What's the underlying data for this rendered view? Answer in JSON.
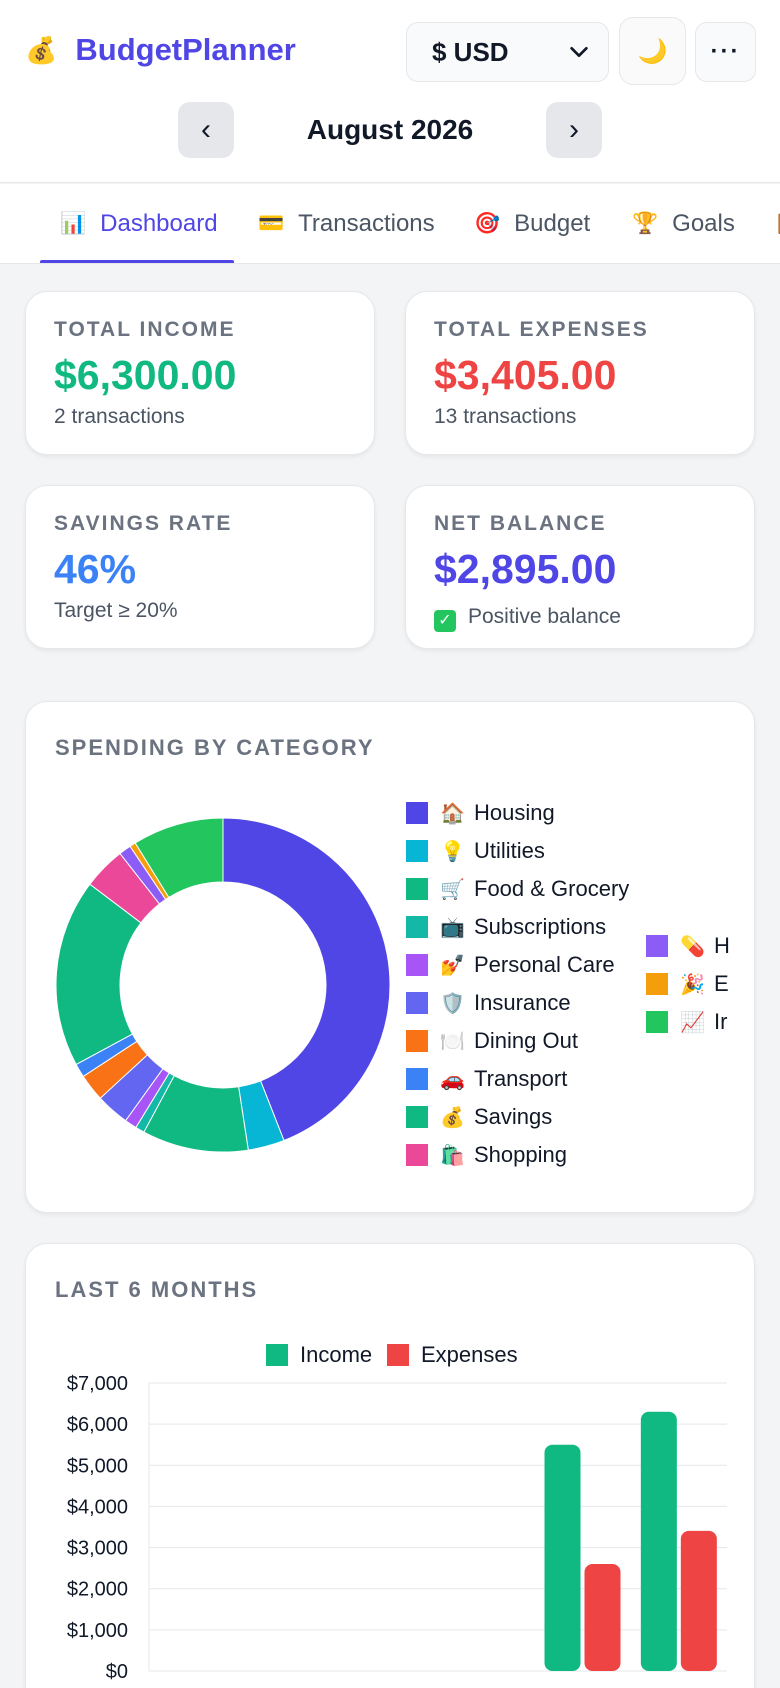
{
  "app": {
    "icon": "money-bag-icon",
    "title": "BudgetPlanner"
  },
  "currency": {
    "selected": "$ USD"
  },
  "header_buttons": {
    "theme_icon": "🌙",
    "more_icon": "···"
  },
  "month_nav": {
    "prev": "‹",
    "next": "›",
    "label": "August 2026"
  },
  "tabs": [
    {
      "icon": "📊",
      "label": "Dashboard",
      "active": true
    },
    {
      "icon": "💳",
      "label": "Transactions",
      "active": false
    },
    {
      "icon": "🎯",
      "label": "Budget",
      "active": false
    },
    {
      "icon": "🏆",
      "label": "Goals",
      "active": false
    },
    {
      "icon": "📋",
      "label": "",
      "active": false
    }
  ],
  "stats": {
    "income": {
      "label": "TOTAL INCOME",
      "value": "$6,300.00",
      "sub": "2 transactions",
      "color": "#10b981"
    },
    "expenses": {
      "label": "TOTAL EXPENSES",
      "value": "$3,405.00",
      "sub": "13 transactions",
      "color": "#ef4444"
    },
    "savings": {
      "label": "SAVINGS RATE",
      "value": "46%",
      "sub": "Target ≥ 20%",
      "color": "#3b82f6"
    },
    "net": {
      "label": "NET BALANCE",
      "value": "$2,895.00",
      "sub": "Positive balance",
      "check": "✓",
      "color": "#4f46e5"
    }
  },
  "spending": {
    "title": "SPENDING BY CATEGORY",
    "legend": [
      {
        "emoji": "🏠",
        "label": "Housing",
        "color": "#4f46e5"
      },
      {
        "emoji": "💡",
        "label": "Utilities",
        "color": "#06b6d4"
      },
      {
        "emoji": "🛒",
        "label": "Food & Grocery",
        "color": "#10b981"
      },
      {
        "emoji": "📺",
        "label": "Subscriptions",
        "color": "#14b8a6"
      },
      {
        "emoji": "💅",
        "label": "Personal Care",
        "color": "#a855f7"
      },
      {
        "emoji": "🛡️",
        "label": "Insurance",
        "color": "#6366f1"
      },
      {
        "emoji": "🍽️",
        "label": "Dining Out",
        "color": "#f97316"
      },
      {
        "emoji": "🚗",
        "label": "Transport",
        "color": "#3b82f6"
      },
      {
        "emoji": "💰",
        "label": "Savings",
        "color": "#10b981"
      },
      {
        "emoji": "🛍️",
        "label": "Shopping",
        "color": "#ec4899"
      },
      {
        "emoji": "💊",
        "label": "H",
        "color": "#8b5cf6"
      },
      {
        "emoji": "🎉",
        "label": "E",
        "color": "#f59e0b"
      },
      {
        "emoji": "📈",
        "label": "Ir",
        "color": "#22c55e"
      }
    ]
  },
  "months": {
    "title": "LAST 6 MONTHS"
  },
  "chart_data": [
    {
      "type": "pie",
      "title": "SPENDING BY CATEGORY",
      "donut": true,
      "categories": [
        "Housing",
        "Utilities",
        "Food & Grocery",
        "Subscriptions",
        "Personal Care",
        "Insurance",
        "Dining Out",
        "Transport",
        "Savings",
        "Shopping",
        "H",
        "E",
        "Ir"
      ],
      "values": [
        1500,
        120,
        350,
        30,
        40,
        110,
        90,
        45,
        620,
        140,
        40,
        20,
        300
      ],
      "colors": [
        "#4f46e5",
        "#06b6d4",
        "#10b981",
        "#14b8a6",
        "#a855f7",
        "#6366f1",
        "#f97316",
        "#3b82f6",
        "#10b981",
        "#ec4899",
        "#8b5cf6",
        "#f59e0b",
        "#22c55e"
      ]
    },
    {
      "type": "bar",
      "title": "LAST 6 MONTHS",
      "categories": [
        "",
        "",
        "",
        "",
        "",
        ""
      ],
      "series": [
        {
          "name": "Income",
          "values": [
            0,
            0,
            0,
            0,
            5500,
            6300
          ],
          "color": "#10b981"
        },
        {
          "name": "Expenses",
          "values": [
            0,
            0,
            0,
            0,
            2600,
            3405
          ],
          "color": "#ef4444"
        }
      ],
      "ylim": [
        0,
        7000
      ],
      "yticks": [
        "$0",
        "$1,000",
        "$2,000",
        "$3,000",
        "$4,000",
        "$5,000",
        "$6,000",
        "$7,000"
      ],
      "grid": true,
      "legend": "top"
    }
  ]
}
